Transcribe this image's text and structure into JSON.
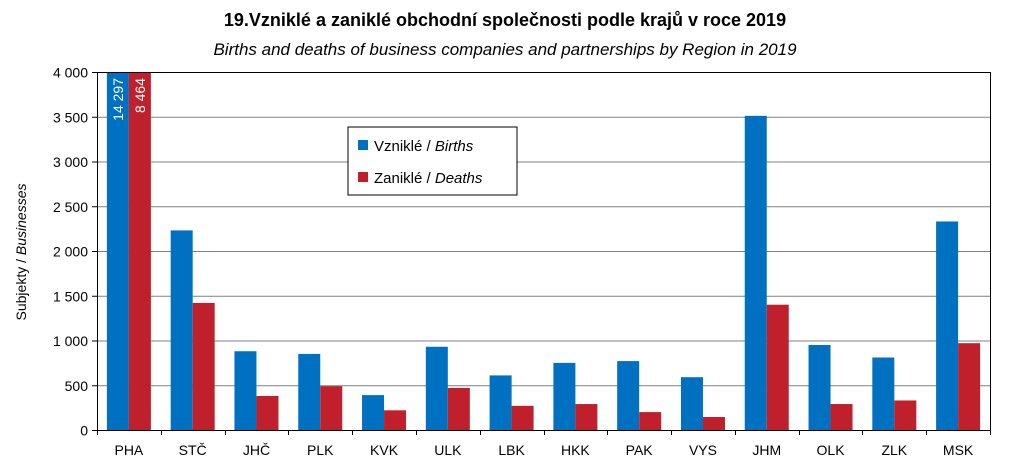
{
  "chart_data": {
    "type": "bar",
    "title": "19.Vzniklé a zaniklé obchodní společnosti podle krajů v roce 2019",
    "subtitle": "Births and deaths of business companies and partnerships by Region in 2019",
    "ylabel_cz": "Subjekty",
    "ylabel_sep": " / ",
    "ylabel_en": "Businesses",
    "ylim": [
      0,
      4000
    ],
    "yticks": [
      0,
      500,
      1000,
      1500,
      2000,
      2500,
      3000,
      3500,
      4000
    ],
    "ytick_labels": [
      "0",
      "500",
      "1 000",
      "1 500",
      "2 000",
      "2 500",
      "3 000",
      "3 500",
      "4 000"
    ],
    "grid": true,
    "legend_position": "top-center",
    "categories": [
      "PHA",
      "STČ",
      "JHČ",
      "PLK",
      "KVK",
      "ULK",
      "LBK",
      "HKK",
      "PAK",
      "VYS",
      "JHM",
      "OLK",
      "ZLK",
      "MSK"
    ],
    "series": [
      {
        "name_cz": "Vzniklé",
        "name_en": "Births",
        "color": "#0070c0",
        "values": [
          14297,
          2230,
          880,
          850,
          390,
          930,
          610,
          750,
          770,
          590,
          3510,
          950,
          810,
          2330
        ],
        "value_labels": [
          "14 297",
          "",
          "",
          "",
          "",
          "",
          "",
          "",
          "",
          "",
          "",
          "",
          "",
          ""
        ]
      },
      {
        "name_cz": "Zaniklé",
        "name_en": "Deaths",
        "color": "#c0202c",
        "values": [
          8464,
          1420,
          380,
          490,
          220,
          470,
          270,
          290,
          200,
          145,
          1400,
          290,
          330,
          970
        ],
        "value_labels": [
          "8 464",
          "",
          "",
          "",
          "",
          "",
          "",
          "",
          "",
          "",
          "",
          "",
          "",
          ""
        ]
      }
    ]
  }
}
